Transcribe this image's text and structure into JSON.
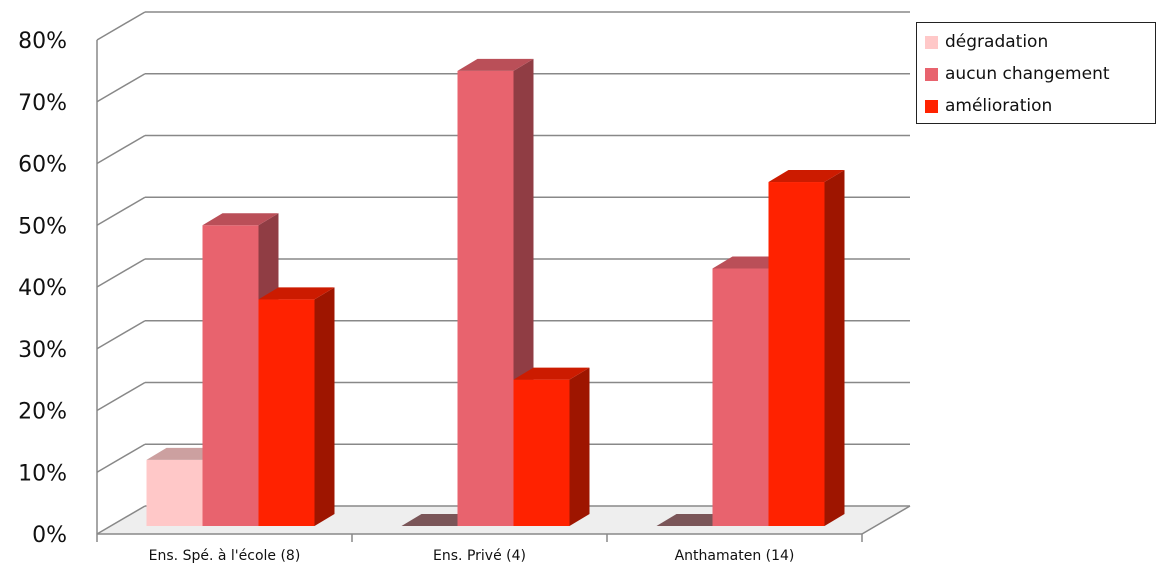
{
  "chart_data": {
    "type": "bar",
    "categories": [
      "Ens. Spé. à l'école (8)",
      "Ens. Privé (4)",
      "Anthamaten (14)"
    ],
    "series": [
      {
        "name": "dégradation",
        "values": [
          12,
          0,
          0
        ],
        "color": "#ffc8c8"
      },
      {
        "name": "aucun changement",
        "values": [
          50,
          75,
          43
        ],
        "color": "#e8636e"
      },
      {
        "name": "amélioration",
        "values": [
          38,
          25,
          57
        ],
        "color": "#ff2200"
      }
    ],
    "y_ticks": [
      "0%",
      "10%",
      "20%",
      "30%",
      "40%",
      "50%",
      "60%",
      "70%",
      "80%"
    ],
    "ylim": [
      0,
      80
    ],
    "three_d": true,
    "grid": true,
    "legend_position": "top-right"
  }
}
